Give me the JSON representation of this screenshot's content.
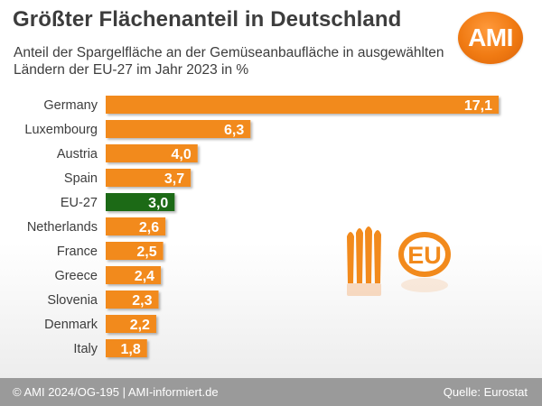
{
  "title": "Größter Flächenanteil in Deutschland",
  "subtitle": "Anteil der Spargelfläche an der Gemüseanbaufläche in ausgewählten Ländern der EU-27 im Jahr 2023 in %",
  "logo_text": "AMI",
  "eu_badge_text": "EU",
  "footer": {
    "left": "© AMI 2024/OG-195 | AMI-informiert.de",
    "right": "Quelle: Eurostat"
  },
  "colors": {
    "bar": "#f28a1c",
    "highlight": "#1e6b12",
    "text": "#3d3d3d",
    "footer": "#9a9a9a"
  },
  "icons": [
    "asparagus-icon",
    "eu-badge-icon"
  ],
  "chart_data": {
    "type": "bar",
    "orientation": "horizontal",
    "categories": [
      "Germany",
      "Luxembourg",
      "Austria",
      "Spain",
      "EU-27",
      "Netherlands",
      "France",
      "Greece",
      "Slovenia",
      "Denmark",
      "Italy"
    ],
    "values": [
      17.1,
      6.3,
      4.0,
      3.7,
      3.0,
      2.6,
      2.5,
      2.4,
      2.3,
      2.2,
      1.8
    ],
    "value_labels": [
      "17,1",
      "6,3",
      "4,0",
      "3,7",
      "3,0",
      "2,6",
      "2,5",
      "2,4",
      "2,3",
      "2,2",
      "1,8"
    ],
    "highlight_category": "EU-27",
    "xlim": [
      0,
      17.1
    ],
    "grid": false,
    "legend": "none"
  }
}
